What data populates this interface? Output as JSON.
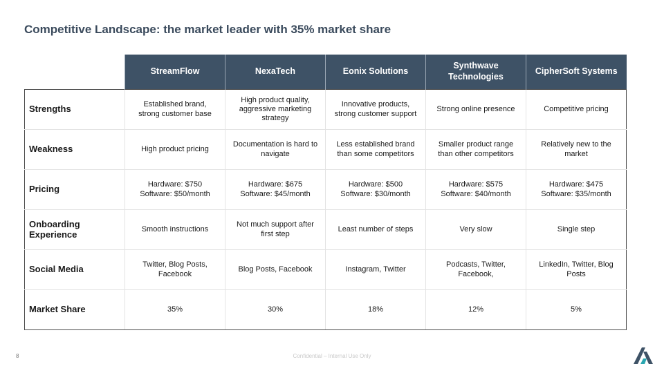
{
  "slide": {
    "title": "Competitive Landscape: the market leader with 35% market share",
    "page_number": "8",
    "footer": "Confidential – Internal Use Only",
    "logo_icon": "brand-a-logo"
  },
  "colors": {
    "header_bg": "#3e5266",
    "title": "#3a4a5c",
    "logo_dark": "#3e5266",
    "logo_accent": "#2aa6b0"
  },
  "table": {
    "columns": [
      "StreamFlow",
      "NexaTech",
      "Eonix Solutions",
      "Synthwave Technologies",
      "CipherSoft Systems"
    ],
    "rows": [
      {
        "label": "Strengths",
        "cells": [
          "Established brand, strong customer base",
          "High product quality, aggressive marketing strategy",
          "Innovative products, strong customer support",
          "Strong online presence",
          "Competitive pricing"
        ]
      },
      {
        "label": "Weakness",
        "cells": [
          "High product pricing",
          "Documentation is hard to navigate",
          "Less established brand than some competitors",
          "Smaller product range than other competitors",
          "Relatively new to the market"
        ]
      },
      {
        "label": "Pricing",
        "cells": [
          "Hardware: $750 Software: $50/month",
          "Hardware: $675 Software: $45/month",
          "Hardware: $500 Software: $30/month",
          "Hardware: $575 Software: $40/month",
          "Hardware: $475 Software: $35/month"
        ]
      },
      {
        "label": "Onboarding Experience",
        "cells": [
          "Smooth instructions",
          "Not much support after first step",
          "Least number of steps",
          "Very slow",
          "Single step"
        ]
      },
      {
        "label": "Social Media",
        "cells": [
          "Twitter, Blog Posts, Facebook",
          "Blog Posts, Facebook",
          "Instagram, Twitter",
          "Podcasts, Twitter, Facebook,",
          "LinkedIn, Twitter, Blog Posts"
        ]
      },
      {
        "label": "Market Share",
        "cells": [
          "35%",
          "30%",
          "18%",
          "12%",
          "5%"
        ]
      }
    ]
  }
}
